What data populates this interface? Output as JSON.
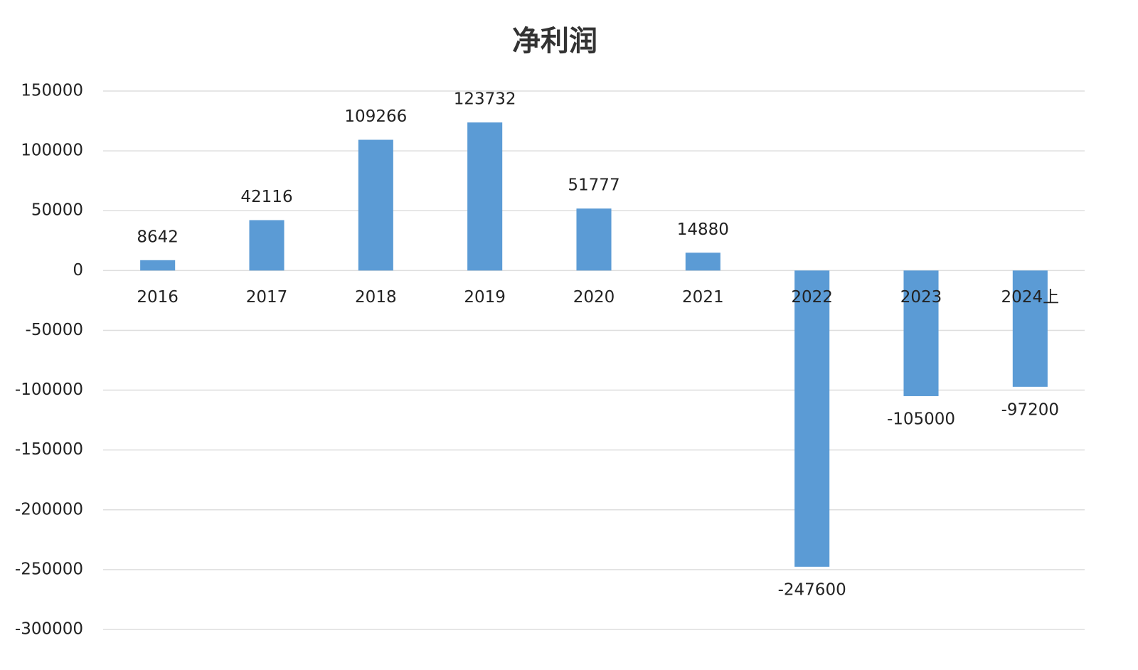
{
  "chart_data": {
    "type": "bar",
    "title": "净利润",
    "categories": [
      "2016",
      "2017",
      "2018",
      "2019",
      "2020",
      "2021",
      "2022",
      "2023",
      "2024上"
    ],
    "values": [
      8642,
      42116,
      109266,
      123732,
      51777,
      14880,
      -247600,
      -105000,
      -97200
    ],
    "color": "#5b9bd5",
    "ylim": [
      -300000,
      150000
    ],
    "yticks": [
      -300000,
      -250000,
      -200000,
      -150000,
      -100000,
      -50000,
      0,
      50000,
      100000,
      150000
    ],
    "grid": true
  }
}
